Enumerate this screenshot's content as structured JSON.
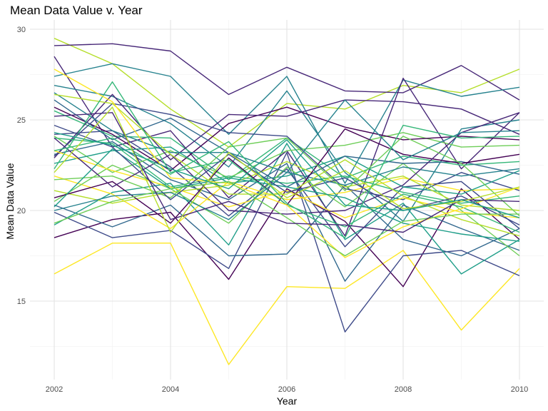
{
  "chart_data": {
    "type": "line",
    "title": "Mean Data Value v. Year",
    "xlabel": "Year",
    "ylabel": "Mean Data Value",
    "x": [
      2002,
      2003,
      2004,
      2005,
      2006,
      2007,
      2008,
      2009,
      2010
    ],
    "xlim": [
      2002,
      2010
    ],
    "ylim": [
      11.5,
      30
    ],
    "xticks": [
      2002,
      2004,
      2006,
      2008,
      2010
    ],
    "yticks": [
      15,
      20,
      25,
      30
    ],
    "grid": true,
    "legend": "none",
    "palette": [
      "#440154",
      "#482878",
      "#3e4a89",
      "#31688e",
      "#26828e",
      "#1f9e89",
      "#35b779",
      "#6ece58",
      "#b5de2b",
      "#fde725"
    ],
    "series": [
      {
        "color": "#fde725",
        "values": [
          16.5,
          18.2,
          18.2,
          11.5,
          15.8,
          15.7,
          17.8,
          13.4,
          16.8
        ]
      },
      {
        "color": "#440154",
        "values": [
          18.5,
          19.5,
          19.9,
          16.2,
          21.2,
          19.4,
          15.8,
          21.2,
          18.4
        ]
      },
      {
        "color": "#3e4a89",
        "values": [
          19.9,
          18.5,
          18.9,
          16.8,
          23.2,
          13.3,
          17.5,
          17.8,
          16.4
        ]
      },
      {
        "color": "#31688e",
        "values": [
          20.3,
          19.1,
          20.3,
          17.5,
          17.6,
          21.4,
          18.4,
          17.5,
          19.0
        ]
      },
      {
        "color": "#1f9e89",
        "values": [
          19.2,
          21.0,
          21.5,
          18.1,
          23.7,
          18.4,
          20.4,
          16.5,
          18.4
        ]
      },
      {
        "color": "#b5de2b",
        "values": [
          29.5,
          28.1,
          25.6,
          23.5,
          25.9,
          25.6,
          26.9,
          26.5,
          27.8
        ]
      },
      {
        "color": "#482878",
        "values": [
          29.1,
          29.2,
          28.8,
          26.4,
          27.9,
          26.6,
          26.5,
          28.0,
          26.1
        ]
      },
      {
        "color": "#26828e",
        "values": [
          27.4,
          28.1,
          27.4,
          24.2,
          27.4,
          21.5,
          27.2,
          26.3,
          26.8
        ]
      },
      {
        "color": "#482878",
        "values": [
          28.5,
          23.5,
          24.4,
          20.7,
          23.3,
          18.6,
          27.3,
          22.3,
          25.4
        ]
      },
      {
        "color": "#26828e",
        "values": [
          26.9,
          26.3,
          24.8,
          22.4,
          26.6,
          22.1,
          19.4,
          24.5,
          25.0
        ]
      },
      {
        "color": "#3e4a89",
        "values": [
          24.2,
          24.4,
          22.4,
          19.7,
          22.3,
          18.0,
          21.3,
          21.6,
          19.0
        ]
      },
      {
        "color": "#31688e",
        "values": [
          23.1,
          23.8,
          21.7,
          20.6,
          22.6,
          16.1,
          20.3,
          19.0,
          17.8
        ]
      },
      {
        "color": "#35b779",
        "values": [
          25.5,
          24.1,
          24.0,
          21.7,
          24.0,
          21.8,
          23.0,
          22.5,
          22.7
        ]
      },
      {
        "color": "#6ece58",
        "values": [
          24.1,
          22.1,
          23.3,
          21.8,
          23.3,
          23.6,
          24.3,
          23.5,
          23.6
        ]
      },
      {
        "color": "#fde725",
        "values": [
          21.9,
          20.9,
          19.0,
          21.6,
          20.6,
          21.0,
          21.8,
          21.1,
          21.2
        ]
      },
      {
        "color": "#440154",
        "values": [
          25.7,
          24.2,
          22.2,
          24.8,
          25.7,
          24.6,
          23.9,
          24.1,
          23.9
        ]
      },
      {
        "color": "#482878",
        "values": [
          22.9,
          26.4,
          22.8,
          25.3,
          25.2,
          26.1,
          26.0,
          25.6,
          24.2
        ]
      },
      {
        "color": "#3e4a89",
        "values": [
          23.0,
          25.9,
          25.3,
          24.3,
          24.1,
          21.2,
          20.6,
          22.1,
          21.1
        ]
      },
      {
        "color": "#1f9e89",
        "values": [
          22.6,
          23.3,
          23.5,
          21.5,
          21.9,
          23.0,
          21.3,
          20.9,
          22.2
        ]
      },
      {
        "color": "#6ece58",
        "values": [
          20.5,
          22.5,
          21.2,
          19.3,
          22.4,
          20.2,
          22.6,
          20.0,
          17.5
        ]
      },
      {
        "color": "#b5de2b",
        "values": [
          21.1,
          20.4,
          21.0,
          21.4,
          22.7,
          21.3,
          21.9,
          20.3,
          20.0
        ]
      },
      {
        "color": "#35b779",
        "values": [
          24.0,
          23.7,
          21.3,
          21.9,
          21.5,
          21.9,
          21.0,
          20.4,
          20.8
        ]
      },
      {
        "color": "#fde725",
        "values": [
          23.3,
          22.2,
          21.3,
          20.2,
          21.1,
          19.6,
          20.7,
          19.9,
          19.6
        ]
      },
      {
        "color": "#26828e",
        "values": [
          26.5,
          24.4,
          23.2,
          23.2,
          22.1,
          21.4,
          22.4,
          21.9,
          22.3
        ]
      },
      {
        "color": "#31688e",
        "values": [
          26.1,
          23.9,
          25.1,
          23.2,
          21.3,
          23.0,
          22.6,
          22.7,
          22.0
        ]
      },
      {
        "color": "#440154",
        "values": [
          20.7,
          21.6,
          19.3,
          22.9,
          20.3,
          24.5,
          23.1,
          22.6,
          23.1
        ]
      },
      {
        "color": "#482878",
        "values": [
          24.0,
          21.3,
          23.1,
          20.0,
          19.8,
          20.0,
          21.4,
          24.3,
          25.4
        ]
      },
      {
        "color": "#6ece58",
        "values": [
          21.7,
          21.9,
          20.7,
          23.5,
          24.0,
          21.1,
          24.1,
          22.6,
          19.7
        ]
      },
      {
        "color": "#b5de2b",
        "values": [
          26.4,
          25.9,
          23.1,
          20.9,
          20.9,
          22.8,
          20.8,
          19.5,
          18.6
        ]
      },
      {
        "color": "#35b779",
        "values": [
          22.3,
          27.1,
          22.1,
          22.8,
          20.3,
          19.1,
          20.9,
          20.2,
          18.8
        ]
      },
      {
        "color": "#1f9e89",
        "values": [
          20.2,
          23.4,
          21.2,
          21.8,
          21.3,
          20.7,
          19.3,
          18.7,
          18.3
        ]
      },
      {
        "color": "#fde725",
        "values": [
          27.8,
          26.0,
          21.8,
          21.5,
          20.3,
          17.4,
          19.1,
          20.1,
          21.3
        ]
      },
      {
        "color": "#3e4a89",
        "values": [
          24.7,
          23.5,
          20.6,
          23.1,
          21.0,
          21.8,
          20.0,
          20.8,
          19.2
        ]
      },
      {
        "color": "#26828e",
        "values": [
          20.0,
          20.8,
          21.0,
          19.5,
          22.1,
          26.1,
          22.8,
          24.3,
          24.4
        ]
      },
      {
        "color": "#6ece58",
        "values": [
          19.3,
          20.5,
          21.2,
          21.6,
          19.6,
          17.5,
          19.4,
          19.8,
          19.8
        ]
      },
      {
        "color": "#35b779",
        "values": [
          23.3,
          24.0,
          22.0,
          23.8,
          20.4,
          18.5,
          24.7,
          24.0,
          24.1
        ]
      },
      {
        "color": "#482878",
        "values": [
          25.2,
          25.4,
          19.5,
          20.5,
          19.3,
          19.2,
          18.8,
          20.6,
          20.5
        ]
      },
      {
        "color": "#b5de2b",
        "values": [
          22.1,
          25.7,
          18.8,
          23.2,
          20.7,
          22.2,
          20.1,
          20.5,
          21.3
        ]
      },
      {
        "color": "#1f9e89",
        "values": [
          24.3,
          23.6,
          22.3,
          21.2,
          23.9,
          20.3,
          20.0,
          20.6,
          19.6
        ]
      }
    ]
  }
}
